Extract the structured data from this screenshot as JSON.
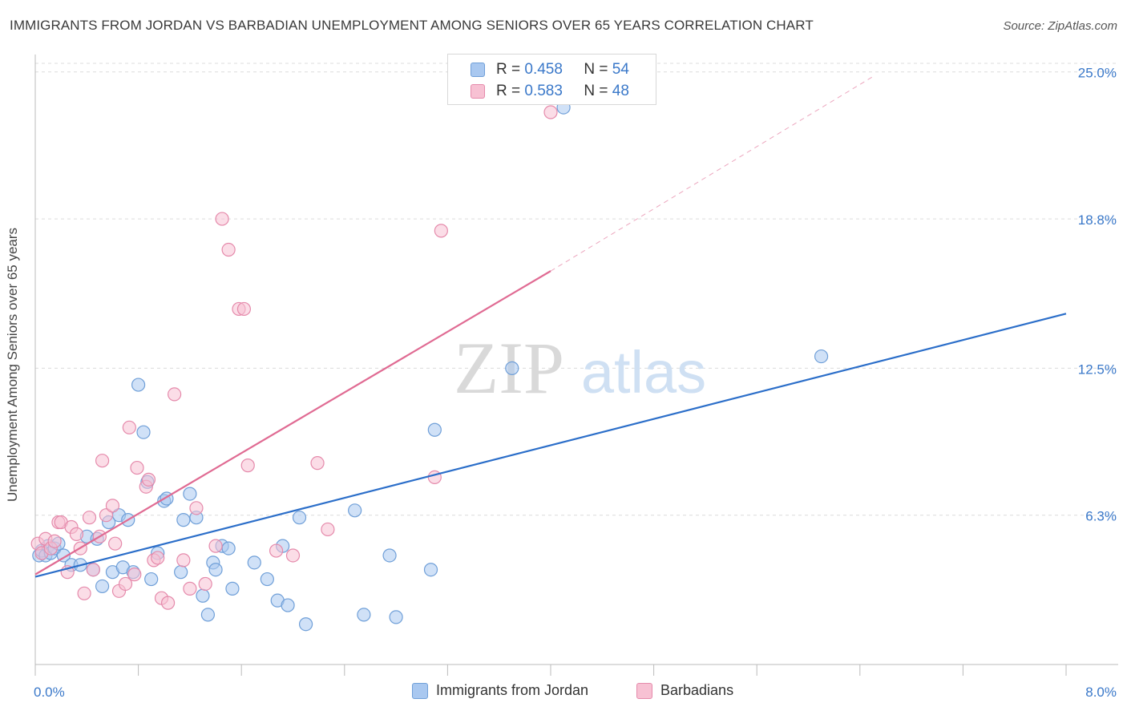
{
  "title": "IMMIGRANTS FROM JORDAN VS BARBADIAN UNEMPLOYMENT AMONG SENIORS OVER 65 YEARS CORRELATION CHART",
  "source": "Source: ZipAtlas.com",
  "watermark": {
    "zip": "ZIP",
    "atlas": "atlas"
  },
  "legend": {
    "r_label": "R =",
    "n_label": "N =",
    "series": [
      {
        "r": "0.458",
        "n": "54",
        "color": "#a9c8f0",
        "border": "#6f9fd8"
      },
      {
        "r": "0.583",
        "n": "48",
        "color": "#f7c1d3",
        "border": "#e58aab"
      }
    ]
  },
  "bottom_legend": [
    "Immigrants from Jordan",
    "Barbadians"
  ],
  "chart_data": {
    "type": "scatter",
    "title": "IMMIGRANTS FROM JORDAN VS BARBADIAN UNEMPLOYMENT AMONG SENIORS OVER 65 YEARS CORRELATION CHART",
    "xlabel": "",
    "ylabel": "Unemployment Among Seniors over 65 years",
    "xlim": [
      0,
      8
    ],
    "ylim": [
      0,
      25.6
    ],
    "x_tick_labels": [
      {
        "value": 0,
        "label": "0.0%"
      },
      {
        "value": 8,
        "label": "8.0%"
      }
    ],
    "y_tick_labels": [
      {
        "value": 6.3,
        "label": "6.3%"
      },
      {
        "value": 12.5,
        "label": "12.5%"
      },
      {
        "value": 18.8,
        "label": "18.8%"
      },
      {
        "value": 25.0,
        "label": "25.0%"
      }
    ],
    "grid": true,
    "legend_position": "top-center",
    "series": [
      {
        "name": "Immigrants from Jordan",
        "color": "#6f9fd8",
        "fill": "#a9c8f0",
        "line_color": "#2b6ec9",
        "trend": {
          "x": [
            0,
            8
          ],
          "y": [
            3.7,
            14.8
          ],
          "dashed_after": null
        },
        "points": [
          [
            0.03,
            4.6
          ],
          [
            0.05,
            4.8
          ],
          [
            0.08,
            4.6
          ],
          [
            0.1,
            5.0
          ],
          [
            0.12,
            4.7
          ],
          [
            0.15,
            4.9
          ],
          [
            0.18,
            5.1
          ],
          [
            0.22,
            4.6
          ],
          [
            0.28,
            4.2
          ],
          [
            0.35,
            4.2
          ],
          [
            0.4,
            5.4
          ],
          [
            0.45,
            4.0
          ],
          [
            0.48,
            5.3
          ],
          [
            0.52,
            3.3
          ],
          [
            0.57,
            6.0
          ],
          [
            0.6,
            3.9
          ],
          [
            0.65,
            6.3
          ],
          [
            0.68,
            4.1
          ],
          [
            0.72,
            6.1
          ],
          [
            0.76,
            3.9
          ],
          [
            0.8,
            11.8
          ],
          [
            0.84,
            9.8
          ],
          [
            0.87,
            7.7
          ],
          [
            0.9,
            3.6
          ],
          [
            0.95,
            4.7
          ],
          [
            1.0,
            6.9
          ],
          [
            1.02,
            7.0
          ],
          [
            1.13,
            3.9
          ],
          [
            1.15,
            6.1
          ],
          [
            1.2,
            7.2
          ],
          [
            1.25,
            6.2
          ],
          [
            1.3,
            2.9
          ],
          [
            1.34,
            2.1
          ],
          [
            1.38,
            4.3
          ],
          [
            1.4,
            4.0
          ],
          [
            1.45,
            5.0
          ],
          [
            1.5,
            4.9
          ],
          [
            1.53,
            3.2
          ],
          [
            1.7,
            4.3
          ],
          [
            1.8,
            3.6
          ],
          [
            1.88,
            2.7
          ],
          [
            1.92,
            5.0
          ],
          [
            1.96,
            2.5
          ],
          [
            2.05,
            6.2
          ],
          [
            2.1,
            1.7
          ],
          [
            2.48,
            6.5
          ],
          [
            2.55,
            2.1
          ],
          [
            2.75,
            4.6
          ],
          [
            2.8,
            2.0
          ],
          [
            3.1,
            9.9
          ],
          [
            3.07,
            4.0
          ],
          [
            3.7,
            12.5
          ],
          [
            4.1,
            23.5
          ],
          [
            6.1,
            13.0
          ]
        ]
      },
      {
        "name": "Barbadians",
        "color": "#e58aab",
        "fill": "#f7c1d3",
        "line_color": "#e06b93",
        "trend": {
          "x": [
            0,
            4.0
          ],
          "y": [
            3.8,
            16.6
          ],
          "dashed_to": [
            6.5,
            24.8
          ]
        },
        "points": [
          [
            0.02,
            5.1
          ],
          [
            0.05,
            4.7
          ],
          [
            0.08,
            5.3
          ],
          [
            0.12,
            4.9
          ],
          [
            0.15,
            5.2
          ],
          [
            0.18,
            6.0
          ],
          [
            0.2,
            6.0
          ],
          [
            0.25,
            3.9
          ],
          [
            0.28,
            5.8
          ],
          [
            0.32,
            5.5
          ],
          [
            0.35,
            4.9
          ],
          [
            0.38,
            3.0
          ],
          [
            0.42,
            6.2
          ],
          [
            0.45,
            4.0
          ],
          [
            0.5,
            5.4
          ],
          [
            0.52,
            8.6
          ],
          [
            0.55,
            6.3
          ],
          [
            0.6,
            6.7
          ],
          [
            0.62,
            5.1
          ],
          [
            0.65,
            3.1
          ],
          [
            0.7,
            3.4
          ],
          [
            0.73,
            10.0
          ],
          [
            0.77,
            3.8
          ],
          [
            0.79,
            8.3
          ],
          [
            0.86,
            7.5
          ],
          [
            0.88,
            7.8
          ],
          [
            0.92,
            4.4
          ],
          [
            0.95,
            4.5
          ],
          [
            0.98,
            2.8
          ],
          [
            1.03,
            2.6
          ],
          [
            1.08,
            11.4
          ],
          [
            1.15,
            4.4
          ],
          [
            1.2,
            3.2
          ],
          [
            1.25,
            6.6
          ],
          [
            1.32,
            3.4
          ],
          [
            1.4,
            5.0
          ],
          [
            1.45,
            18.8
          ],
          [
            1.5,
            17.5
          ],
          [
            1.58,
            15.0
          ],
          [
            1.62,
            15.0
          ],
          [
            1.65,
            8.4
          ],
          [
            1.87,
            4.8
          ],
          [
            2.0,
            4.6
          ],
          [
            2.19,
            8.5
          ],
          [
            2.27,
            5.7
          ],
          [
            3.1,
            7.9
          ],
          [
            3.15,
            18.3
          ],
          [
            4.0,
            23.3
          ]
        ]
      }
    ]
  }
}
